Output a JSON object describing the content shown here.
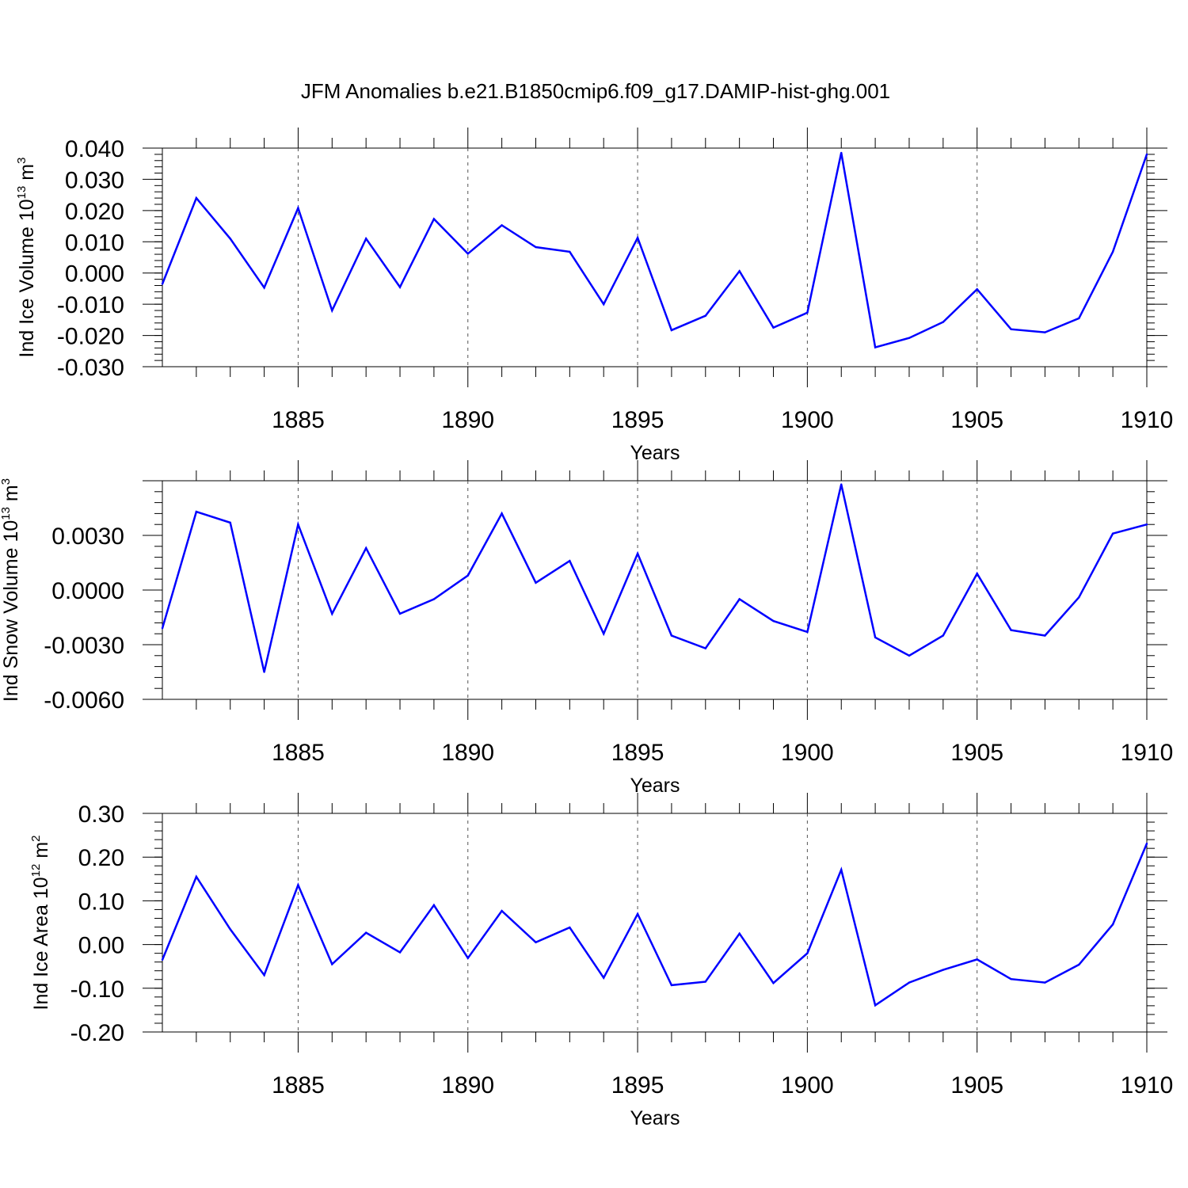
{
  "figure": {
    "title": "JFM Anomalies b.e21.B1850cmip6.f09_g17.DAMIP-hist-ghg.001",
    "line_color": "#0000ff",
    "grid_color": "#555555"
  },
  "chart_data": [
    {
      "type": "line",
      "name": "ice-volume",
      "ylabel": {
        "main": "Ind Ice Volume 10",
        "exp": "13",
        "unit": " m",
        "unit_exp": "3"
      },
      "xlabel": "Years",
      "xlim": [
        1881,
        1910
      ],
      "ylim": [
        -0.03,
        0.04
      ],
      "yticks": [
        -0.03,
        -0.02,
        -0.01,
        0.0,
        0.01,
        0.02,
        0.03,
        0.04
      ],
      "ytick_labels": [
        "-0.030",
        "-0.020",
        "-0.010",
        "0.000",
        "0.010",
        "0.020",
        "0.030",
        "0.040"
      ],
      "xticks": [
        1885,
        1890,
        1895,
        1900,
        1905,
        1910
      ],
      "xtick_labels": [
        "1885",
        "1890",
        "1895",
        "1900",
        "1905",
        "1910"
      ],
      "x": [
        1881,
        1882,
        1883,
        1884,
        1885,
        1886,
        1887,
        1888,
        1889,
        1890,
        1891,
        1892,
        1893,
        1894,
        1895,
        1896,
        1897,
        1898,
        1899,
        1900,
        1901,
        1902,
        1903,
        1904,
        1905,
        1906,
        1907,
        1908,
        1909,
        1910
      ],
      "values": [
        -0.0035,
        0.024,
        0.011,
        -0.0047,
        0.0208,
        -0.012,
        0.011,
        -0.0045,
        0.0173,
        0.0062,
        0.0153,
        0.0083,
        0.0068,
        -0.01,
        0.0113,
        -0.0183,
        -0.0137,
        0.0006,
        -0.0175,
        -0.0127,
        0.0385,
        -0.0238,
        -0.0208,
        -0.0157,
        -0.0052,
        -0.018,
        -0.019,
        -0.0145,
        0.0068,
        0.038
      ]
    },
    {
      "type": "line",
      "name": "snow-volume",
      "ylabel": {
        "main": "Ind Snow Volume 10",
        "exp": "13",
        "unit": " m",
        "unit_exp": "3"
      },
      "xlabel": "Years",
      "xlim": [
        1881,
        1910
      ],
      "ylim": [
        -0.006,
        0.006
      ],
      "yticks": [
        -0.006,
        -0.003,
        0.0,
        0.003
      ],
      "ytick_labels": [
        "-0.0060",
        "-0.0030",
        "0.0000",
        "0.0030"
      ],
      "xticks": [
        1885,
        1890,
        1895,
        1900,
        1905,
        1910
      ],
      "xtick_labels": [
        "1885",
        "1890",
        "1895",
        "1900",
        "1905",
        "1910"
      ],
      "x": [
        1881,
        1882,
        1883,
        1884,
        1885,
        1886,
        1887,
        1888,
        1889,
        1890,
        1891,
        1892,
        1893,
        1894,
        1895,
        1896,
        1897,
        1898,
        1899,
        1900,
        1901,
        1902,
        1903,
        1904,
        1905,
        1906,
        1907,
        1908,
        1909,
        1910
      ],
      "values": [
        -0.0021,
        0.0043,
        0.0037,
        -0.0045,
        0.0036,
        -0.0013,
        0.0023,
        -0.0013,
        -0.0005,
        0.0008,
        0.0042,
        0.0004,
        0.0016,
        -0.0024,
        0.002,
        -0.0025,
        -0.0032,
        -0.0005,
        -0.0017,
        -0.0023,
        0.0058,
        -0.0026,
        -0.0036,
        -0.0025,
        0.0009,
        -0.0022,
        -0.0025,
        -0.0004,
        0.0031,
        0.0036
      ]
    },
    {
      "type": "line",
      "name": "ice-area",
      "ylabel": {
        "main": "Ind Ice Area 10",
        "exp": "12",
        "unit": " m",
        "unit_exp": "2"
      },
      "xlabel": "Years",
      "xlim": [
        1881,
        1910
      ],
      "ylim": [
        -0.2,
        0.3
      ],
      "yticks": [
        -0.2,
        -0.1,
        0.0,
        0.1,
        0.2,
        0.3
      ],
      "ytick_labels": [
        "-0.20",
        "-0.10",
        "0.00",
        "0.10",
        "0.20",
        "0.30"
      ],
      "xticks": [
        1885,
        1890,
        1895,
        1900,
        1905,
        1910
      ],
      "xtick_labels": [
        "1885",
        "1890",
        "1895",
        "1900",
        "1905",
        "1910"
      ],
      "x": [
        1881,
        1882,
        1883,
        1884,
        1885,
        1886,
        1887,
        1888,
        1889,
        1890,
        1891,
        1892,
        1893,
        1894,
        1895,
        1896,
        1897,
        1898,
        1899,
        1900,
        1901,
        1902,
        1903,
        1904,
        1905,
        1906,
        1907,
        1908,
        1909,
        1910
      ],
      "values": [
        -0.035,
        0.155,
        0.035,
        -0.07,
        0.136,
        -0.045,
        0.027,
        -0.018,
        0.09,
        -0.031,
        0.077,
        0.005,
        0.039,
        -0.076,
        0.07,
        -0.093,
        -0.085,
        0.025,
        -0.088,
        -0.02,
        0.171,
        -0.139,
        -0.087,
        -0.058,
        -0.034,
        -0.079,
        -0.087,
        -0.046,
        0.046,
        0.231
      ]
    }
  ]
}
